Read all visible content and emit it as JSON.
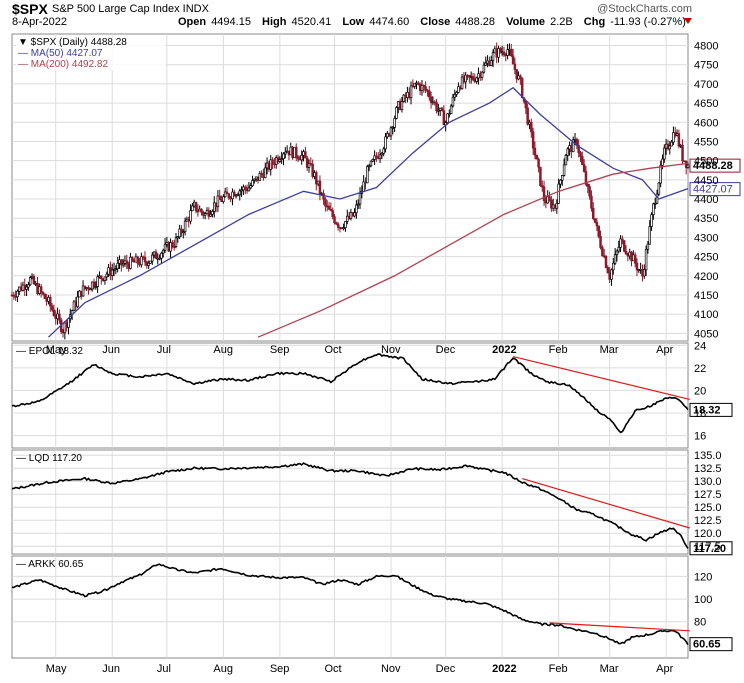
{
  "header": {
    "symbol": "$SPX",
    "name": "S&P 500 Large Cap Index INDX",
    "date": "8-Apr-2022",
    "watermark": "@StockCharts.com",
    "ohlc": [
      {
        "label": "Open",
        "value": "4494.15"
      },
      {
        "label": "High",
        "value": "4520.41"
      },
      {
        "label": "Low",
        "value": "4474.60"
      },
      {
        "label": "Close",
        "value": "4488.28"
      },
      {
        "label": "Volume",
        "value": "2.2B"
      },
      {
        "label": "Chg",
        "value": "-11.93 (-0.27%)"
      }
    ]
  },
  "x_months": [
    {
      "label": "May",
      "day": 24
    },
    {
      "label": "Jun",
      "day": 55
    },
    {
      "label": "Jul",
      "day": 85
    },
    {
      "label": "Aug",
      "day": 116
    },
    {
      "label": "Sep",
      "day": 147
    },
    {
      "label": "Oct",
      "day": 177
    },
    {
      "label": "Nov",
      "day": 208
    },
    {
      "label": "Dec",
      "day": 238
    },
    {
      "label": "2022",
      "day": 269
    },
    {
      "label": "Feb",
      "day": 300
    },
    {
      "label": "Mar",
      "day": 328
    },
    {
      "label": "Apr",
      "day": 359
    }
  ],
  "colors": {
    "price": "#8b1a2b",
    "ma50": "#3b3f9a",
    "ma200": "#b0414e",
    "trend": "#e01919",
    "line": "#000000",
    "grid": "#dcdcdc"
  },
  "chart_data": [
    {
      "type": "candlestick",
      "title": "$SPX (Daily) 4488.28",
      "x_range_days": [
        0,
        371
      ],
      "ylim": [
        4030,
        4830
      ],
      "y_ticks": [
        4050,
        4100,
        4150,
        4200,
        4250,
        4300,
        4350,
        4400,
        4450,
        4500,
        4550,
        4600,
        4650,
        4700,
        4750,
        4800
      ],
      "price": [
        [
          0,
          4150
        ],
        [
          10,
          4190
        ],
        [
          20,
          4130
        ],
        [
          28,
          4060
        ],
        [
          38,
          4160
        ],
        [
          50,
          4200
        ],
        [
          60,
          4230
        ],
        [
          75,
          4240
        ],
        [
          90,
          4290
        ],
        [
          100,
          4380
        ],
        [
          106,
          4360
        ],
        [
          112,
          4390
        ],
        [
          122,
          4420
        ],
        [
          130,
          4430
        ],
        [
          140,
          4480
        ],
        [
          150,
          4530
        ],
        [
          160,
          4510
        ],
        [
          166,
          4460
        ],
        [
          172,
          4380
        ],
        [
          180,
          4330
        ],
        [
          188,
          4360
        ],
        [
          195,
          4470
        ],
        [
          205,
          4550
        ],
        [
          212,
          4640
        ],
        [
          222,
          4700
        ],
        [
          228,
          4680
        ],
        [
          238,
          4600
        ],
        [
          245,
          4700
        ],
        [
          255,
          4720
        ],
        [
          265,
          4780
        ],
        [
          272,
          4790
        ],
        [
          279,
          4700
        ],
        [
          286,
          4540
        ],
        [
          292,
          4400
        ],
        [
          298,
          4380
        ],
        [
          304,
          4520
        ],
        [
          310,
          4550
        ],
        [
          316,
          4420
        ],
        [
          322,
          4300
        ],
        [
          328,
          4200
        ],
        [
          334,
          4290
        ],
        [
          340,
          4250
        ],
        [
          346,
          4200
        ],
        [
          352,
          4380
        ],
        [
          358,
          4520
        ],
        [
          364,
          4580
        ],
        [
          368,
          4510
        ],
        [
          371,
          4488.28
        ]
      ],
      "ma50": {
        "name": "MA(50) 4427.07",
        "values": [
          [
            20,
            4040
          ],
          [
            40,
            4130
          ],
          [
            70,
            4200
          ],
          [
            100,
            4280
          ],
          [
            130,
            4360
          ],
          [
            160,
            4420
          ],
          [
            180,
            4400
          ],
          [
            200,
            4430
          ],
          [
            220,
            4520
          ],
          [
            240,
            4600
          ],
          [
            262,
            4650
          ],
          [
            275,
            4690
          ],
          [
            290,
            4620
          ],
          [
            310,
            4540
          ],
          [
            330,
            4480
          ],
          [
            346,
            4450
          ],
          [
            355,
            4400
          ],
          [
            371,
            4427.07
          ]
        ]
      },
      "ma200": {
        "name": "MA(200) 4492.82",
        "values": [
          [
            135,
            4040
          ],
          [
            170,
            4110
          ],
          [
            210,
            4200
          ],
          [
            240,
            4280
          ],
          [
            270,
            4360
          ],
          [
            300,
            4420
          ],
          [
            330,
            4465
          ],
          [
            350,
            4480
          ],
          [
            371,
            4492.82
          ]
        ]
      },
      "last_labels": {
        "price": "4488.28",
        "ma50": "4427.07"
      }
    },
    {
      "type": "line",
      "title": "EPOL 18.32",
      "ylim": [
        14.9,
        24.2
      ],
      "y_ticks": [
        16,
        18,
        20,
        22,
        24
      ],
      "values": [
        [
          0,
          18.6
        ],
        [
          15,
          19.0
        ],
        [
          30,
          20.5
        ],
        [
          45,
          22.3
        ],
        [
          55,
          21.5
        ],
        [
          70,
          21.2
        ],
        [
          85,
          21.5
        ],
        [
          100,
          20.6
        ],
        [
          115,
          21.0
        ],
        [
          130,
          20.9
        ],
        [
          145,
          21.5
        ],
        [
          160,
          21.5
        ],
        [
          175,
          20.8
        ],
        [
          190,
          22.5
        ],
        [
          200,
          23.2
        ],
        [
          215,
          22.8
        ],
        [
          225,
          21.0
        ],
        [
          240,
          20.6
        ],
        [
          255,
          20.8
        ],
        [
          265,
          21.0
        ],
        [
          275,
          22.9
        ],
        [
          285,
          21.5
        ],
        [
          295,
          20.7
        ],
        [
          305,
          20.5
        ],
        [
          315,
          19.2
        ],
        [
          322,
          18.1
        ],
        [
          328,
          17.5
        ],
        [
          334,
          16.2
        ],
        [
          342,
          18.2
        ],
        [
          350,
          18.6
        ],
        [
          358,
          19.2
        ],
        [
          364,
          19.4
        ],
        [
          368,
          18.8
        ],
        [
          371,
          18.32
        ]
      ],
      "trendline": [
        [
          275,
          23.0
        ],
        [
          372,
          19.2
        ]
      ],
      "last_label": "18.32"
    },
    {
      "type": "line",
      "title": "LQD 117.20",
      "ylim": [
        116,
        136
      ],
      "y_ticks": [
        117.5,
        120.0,
        122.5,
        125.0,
        127.5,
        130.0,
        132.5,
        135.0
      ],
      "values": [
        [
          0,
          128.5
        ],
        [
          20,
          129.8
        ],
        [
          40,
          130.5
        ],
        [
          55,
          129.6
        ],
        [
          70,
          130.4
        ],
        [
          85,
          131.8
        ],
        [
          100,
          132.5
        ],
        [
          115,
          132.4
        ],
        [
          130,
          132.6
        ],
        [
          145,
          132.8
        ],
        [
          160,
          133.3
        ],
        [
          175,
          132.0
        ],
        [
          190,
          132.0
        ],
        [
          205,
          131.0
        ],
        [
          220,
          132.4
        ],
        [
          235,
          132.2
        ],
        [
          250,
          133.0
        ],
        [
          260,
          132.2
        ],
        [
          270,
          131.7
        ],
        [
          280,
          129.8
        ],
        [
          290,
          128.5
        ],
        [
          300,
          126.7
        ],
        [
          310,
          124.5
        ],
        [
          320,
          123.5
        ],
        [
          330,
          121.8
        ],
        [
          340,
          119.8
        ],
        [
          348,
          118.7
        ],
        [
          355,
          120.0
        ],
        [
          362,
          121.0
        ],
        [
          366,
          120.0
        ],
        [
          371,
          117.2
        ]
      ],
      "trendline": [
        [
          280,
          130.5
        ],
        [
          372,
          121.0
        ]
      ],
      "last_label": "117.20"
    },
    {
      "type": "line",
      "title": "ARKK 60.65",
      "ylim": [
        48,
        138
      ],
      "y_ticks": [
        80,
        100,
        120
      ],
      "values": [
        [
          0,
          110
        ],
        [
          15,
          117
        ],
        [
          30,
          108
        ],
        [
          40,
          103
        ],
        [
          50,
          107
        ],
        [
          60,
          115
        ],
        [
          70,
          121
        ],
        [
          80,
          131
        ],
        [
          90,
          126
        ],
        [
          100,
          123
        ],
        [
          115,
          127
        ],
        [
          130,
          121
        ],
        [
          145,
          119
        ],
        [
          160,
          119
        ],
        [
          170,
          113
        ],
        [
          180,
          117
        ],
        [
          190,
          113
        ],
        [
          200,
          120
        ],
        [
          210,
          121
        ],
        [
          220,
          112
        ],
        [
          230,
          104
        ],
        [
          240,
          100
        ],
        [
          250,
          98
        ],
        [
          260,
          96
        ],
        [
          270,
          90
        ],
        [
          280,
          82
        ],
        [
          290,
          78
        ],
        [
          300,
          77
        ],
        [
          310,
          73
        ],
        [
          320,
          70
        ],
        [
          328,
          65
        ],
        [
          334,
          60
        ],
        [
          340,
          66
        ],
        [
          350,
          69
        ],
        [
          358,
          72
        ],
        [
          364,
          72
        ],
        [
          371,
          60.65
        ]
      ],
      "trendline": [
        [
          295,
          79
        ],
        [
          372,
          72
        ]
      ],
      "last_label": "60.65"
    }
  ]
}
